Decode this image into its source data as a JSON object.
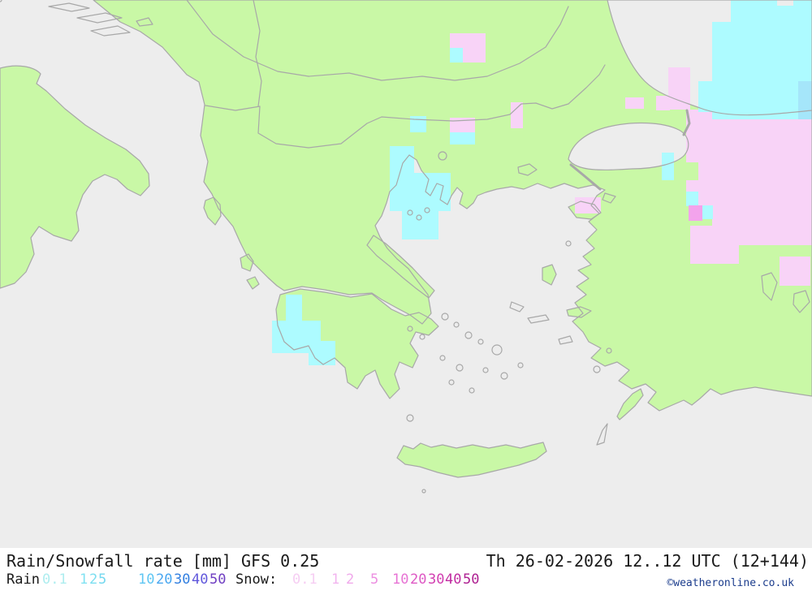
{
  "legend": {
    "title": "Rain/Snowfall rate [mm] GFS 0.25",
    "datetime": "Th 26-02-2026 12..12 UTC (12+144)",
    "rain_label": "Rain",
    "snow_label": "Snow:",
    "rain_scale": [
      {
        "value": "0.1",
        "color": "#AEEDEF"
      },
      {
        "value": "1",
        "color": "#82E2F2"
      },
      {
        "value": "2",
        "color": "#7BDEF0"
      },
      {
        "value": "5",
        "color": "#74D8EF"
      },
      {
        "value": "10",
        "color": "#5FC6F3"
      },
      {
        "value": "20",
        "color": "#49A7F1"
      },
      {
        "value": "30",
        "color": "#327FE0"
      },
      {
        "value": "40",
        "color": "#6158DC"
      },
      {
        "value": "50",
        "color": "#6F3EC2"
      }
    ],
    "snow_scale": [
      {
        "value": "0.1",
        "color": "#F6CEF3"
      },
      {
        "value": "1",
        "color": "#F2B5EF"
      },
      {
        "value": "2",
        "color": "#F0A9EB"
      },
      {
        "value": "5",
        "color": "#EC8FE1"
      },
      {
        "value": "10",
        "color": "#E773D4"
      },
      {
        "value": "20",
        "color": "#DE58C4"
      },
      {
        "value": "30",
        "color": "#D23FB1"
      },
      {
        "value": "40",
        "color": "#C12CA1"
      },
      {
        "value": "50",
        "color": "#AE2192"
      }
    ],
    "copyright": "©weatheronline.co.uk"
  },
  "map": {
    "colors": {
      "sea": "#EDEDED",
      "land": "#C9F8A6",
      "coastline": "#A8A8A8",
      "rain_patch": "#ADFBFF",
      "rain_patch_medium": "#A5E6FA",
      "snow_patch": "#F8D3F7",
      "snow_patch_bright": "#F3A3EC"
    }
  }
}
